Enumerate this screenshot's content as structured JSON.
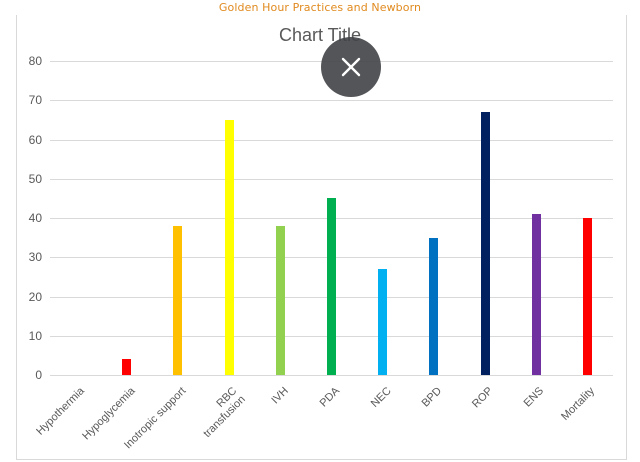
{
  "page": {
    "header_title": "Golden Hour Practices and Newborn"
  },
  "overlay": {
    "close_button": {
      "icon": "close-icon",
      "label": "×",
      "color": "#404246"
    }
  },
  "chart_data": {
    "type": "bar",
    "title": "Chart Title",
    "xlabel": "",
    "ylabel": "",
    "ylim": [
      0,
      80
    ],
    "yticks": [
      0,
      10,
      20,
      30,
      40,
      50,
      60,
      70,
      80
    ],
    "grid": true,
    "legend": "none",
    "categories": [
      "Hypothermia",
      "Hypoglycemia",
      "Inotropic support",
      "RBC\ntransfusion",
      "IVH",
      "PDA",
      "NEC",
      "BPD",
      "ROP",
      "ENS",
      "Mortality"
    ],
    "values": [
      0,
      4,
      38,
      65,
      38,
      45,
      27,
      35,
      67,
      41,
      40
    ],
    "colors": [
      "#c00000",
      "#ff0000",
      "#ffc000",
      "#ffff00",
      "#92d050",
      "#00b050",
      "#00b0f0",
      "#0070c0",
      "#002060",
      "#7030a0",
      "#ff0000"
    ]
  }
}
